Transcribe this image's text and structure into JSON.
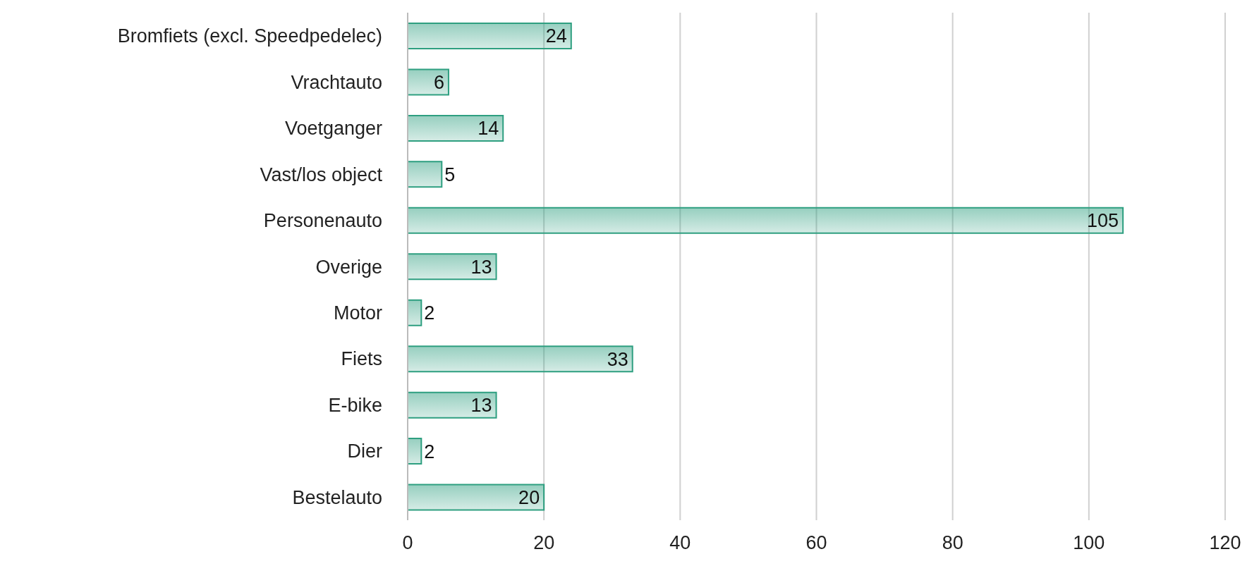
{
  "chart_data": {
    "type": "bar",
    "orientation": "horizontal",
    "categories": [
      "Bromfiets (excl. Speedpedelec)",
      "Vrachtauto",
      "Voetganger",
      "Vast/los object",
      "Personenauto",
      "Overige",
      "Motor",
      "Fiets",
      "E-bike",
      "Dier",
      "Bestelauto"
    ],
    "values": [
      24,
      6,
      14,
      5,
      105,
      13,
      2,
      33,
      13,
      2,
      20
    ],
    "color": "#2e9f80",
    "xlim": [
      0,
      120
    ],
    "xticks": [
      0,
      20,
      40,
      60,
      80,
      100,
      120
    ],
    "grid": "x",
    "data_labels": true
  }
}
